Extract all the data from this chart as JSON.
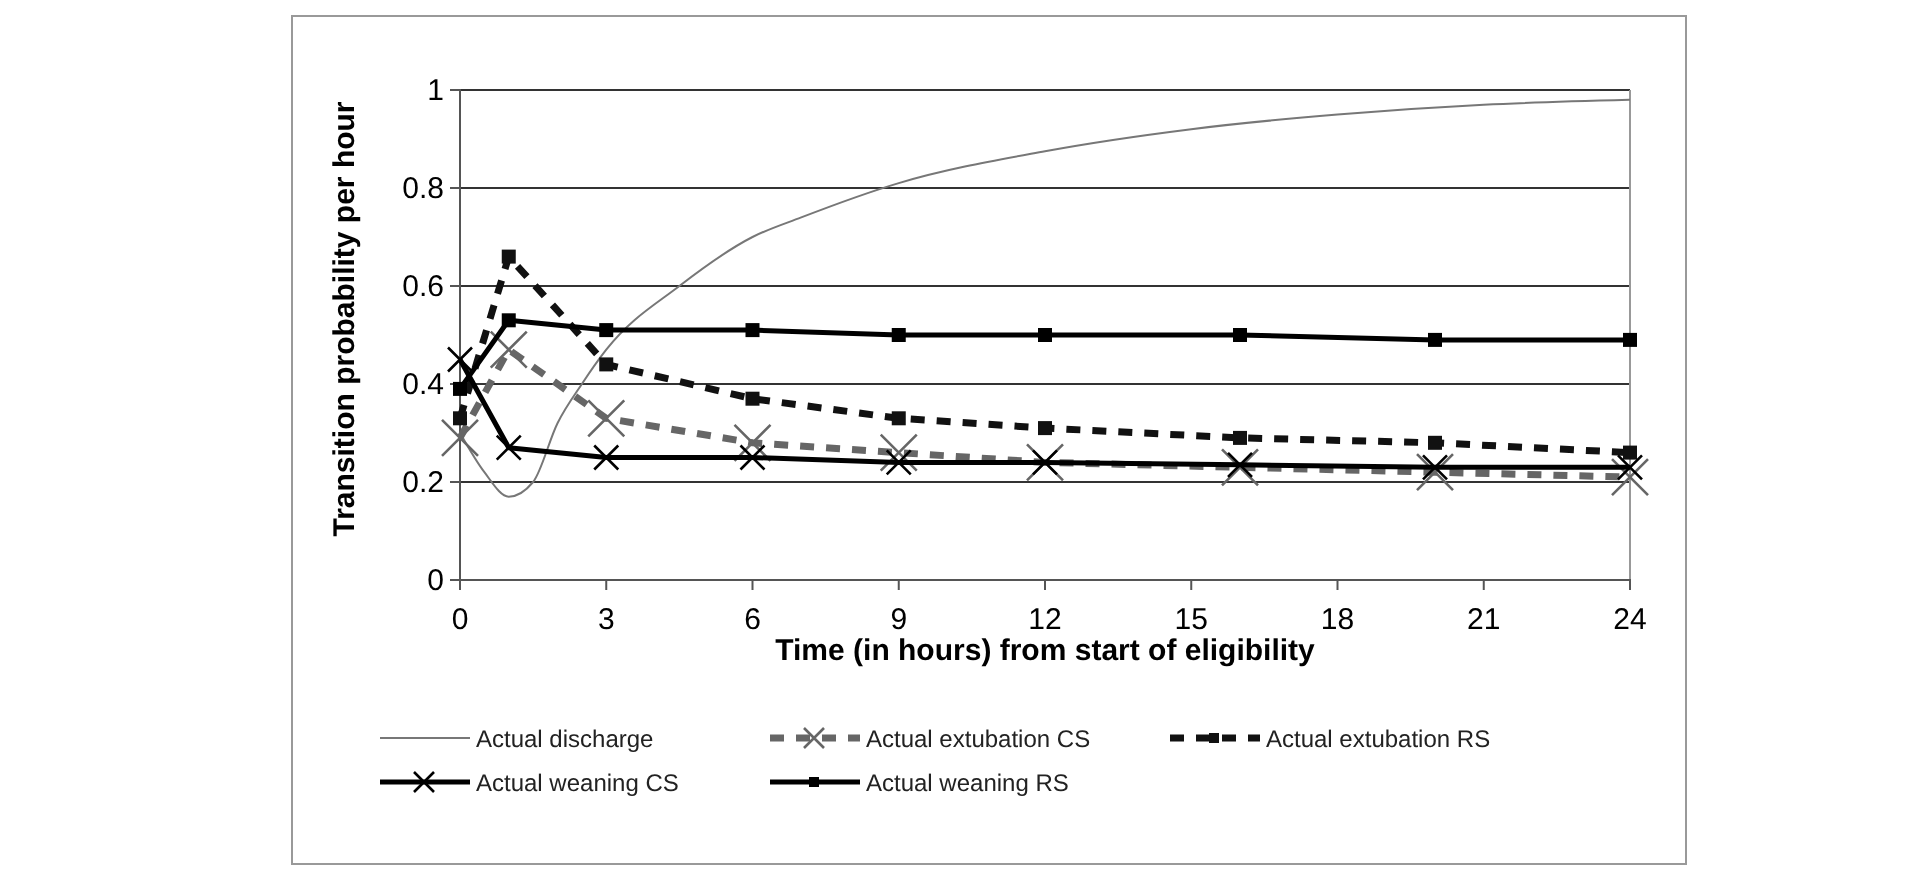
{
  "chart_data": {
    "type": "line",
    "xlabel": "Time (in hours) from start of eligibility",
    "ylabel": "Transition probability per hour",
    "xlim": [
      0,
      24
    ],
    "xticks": [
      0,
      3,
      6,
      9,
      12,
      15,
      18,
      21,
      24
    ],
    "ylim": [
      0,
      1
    ],
    "yticks": [
      0,
      {
        "value": 0.2,
        "label": "0.2"
      },
      {
        "value": 0.4,
        "label": "0.4"
      },
      {
        "value": 0.6,
        "label": "0.6"
      },
      {
        "value": 0.8,
        "label": "0.8"
      },
      1
    ],
    "grid": "y",
    "legend": "bottom",
    "series": [
      {
        "name": "Actual discharge",
        "color": "#777777",
        "marker": "none",
        "line_style": "solid",
        "x": [
          0,
          0.5,
          1,
          1.5,
          2,
          2.5,
          3,
          4.5,
          6,
          7,
          9,
          12,
          15,
          18,
          21,
          24
        ],
        "values": [
          0.3,
          0.22,
          0.17,
          0.2,
          0.32,
          0.4,
          0.47,
          0.6,
          0.7,
          0.74,
          0.81,
          0.875,
          0.92,
          0.95,
          0.97,
          0.98
        ]
      },
      {
        "name": "Actual extubation CS",
        "color": "#666666",
        "marker": "cross",
        "line_style": "dashed",
        "x": [
          0,
          1,
          3,
          6,
          9,
          12,
          16,
          20,
          24
        ],
        "values": [
          0.29,
          0.47,
          0.33,
          0.28,
          0.26,
          0.24,
          0.23,
          0.22,
          0.21
        ]
      },
      {
        "name": "Actual extubation RS",
        "color": "#111111",
        "marker": "square",
        "line_style": "dashed",
        "x": [
          0,
          1,
          3,
          6,
          9,
          12,
          16,
          20,
          24
        ],
        "values": [
          0.33,
          0.66,
          0.44,
          0.37,
          0.33,
          0.31,
          0.29,
          0.28,
          0.26
        ]
      },
      {
        "name": "Actual weaning CS",
        "color": "#000000",
        "marker": "cross",
        "line_style": "solid",
        "x": [
          0,
          1,
          3,
          6,
          9,
          12,
          16,
          20,
          24
        ],
        "values": [
          0.45,
          0.27,
          0.25,
          0.25,
          0.24,
          0.24,
          0.235,
          0.23,
          0.23
        ]
      },
      {
        "name": "Actual weaning RS",
        "color": "#000000",
        "marker": "square",
        "line_style": "solid",
        "x": [
          0,
          1,
          3,
          6,
          9,
          12,
          16,
          20,
          24
        ],
        "values": [
          0.39,
          0.53,
          0.51,
          0.51,
          0.5,
          0.5,
          0.5,
          0.49,
          0.49
        ]
      }
    ]
  }
}
